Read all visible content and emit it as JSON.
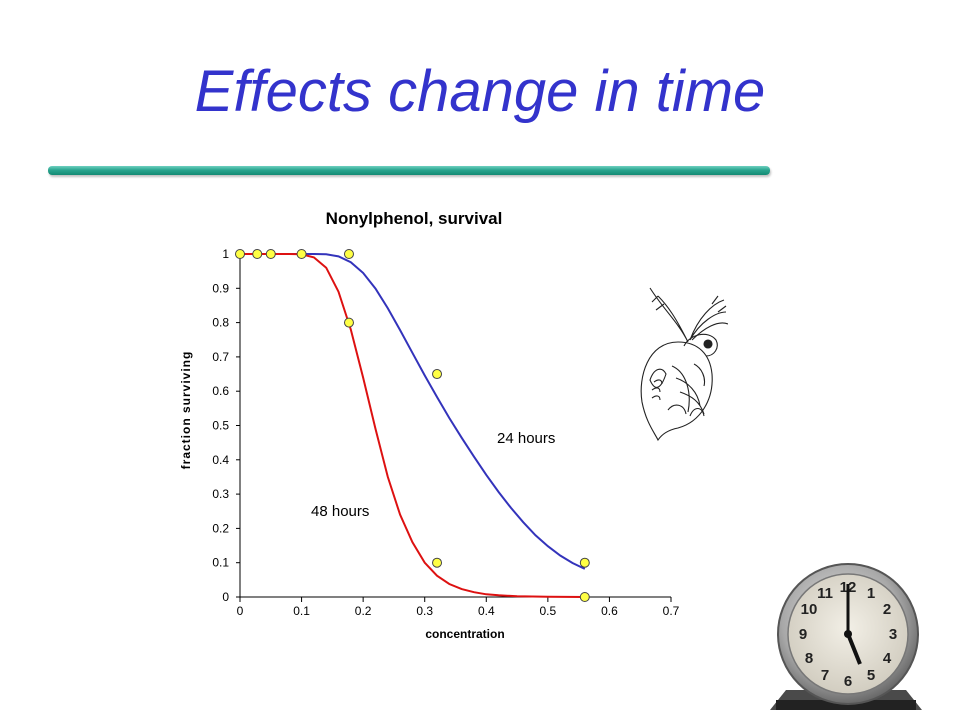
{
  "slide": {
    "title": "Effects change in time",
    "illustrations": [
      "daphnia-icon",
      "alarm-clock-icon"
    ]
  },
  "colors": {
    "title": "#3333cc",
    "rule": "#2aa58f",
    "series_24h": "#3333bb",
    "series_48h": "#dd1111",
    "marker_fill": "#ffff44"
  },
  "chart_data": {
    "type": "line",
    "title": "Nonylphenol, survival",
    "xlabel": "concentration",
    "ylabel": "fraction surviving",
    "xlim": [
      0,
      0.7
    ],
    "ylim": [
      0,
      1
    ],
    "xticks": [
      "0",
      "0.1",
      "0.2",
      "0.3",
      "0.4",
      "0.5",
      "0.6",
      "0.7"
    ],
    "yticks": [
      "0",
      "0.1",
      "0.2",
      "0.3",
      "0.4",
      "0.5",
      "0.6",
      "0.7",
      "0.8",
      "0.9",
      "1"
    ],
    "grid": false,
    "legend": "none",
    "series": [
      {
        "name": "24 hours",
        "color": "#3333bb",
        "fit_x": [
          0,
          0.02,
          0.04,
          0.06,
          0.08,
          0.1,
          0.12,
          0.14,
          0.16,
          0.18,
          0.2,
          0.22,
          0.24,
          0.26,
          0.28,
          0.3,
          0.32,
          0.34,
          0.36,
          0.38,
          0.4,
          0.42,
          0.44,
          0.46,
          0.48,
          0.5,
          0.52,
          0.54,
          0.56
        ],
        "fit_y": [
          1,
          1,
          1,
          1,
          1,
          1,
          1,
          0.999,
          0.993,
          0.976,
          0.945,
          0.899,
          0.842,
          0.778,
          0.712,
          0.646,
          0.583,
          0.522,
          0.464,
          0.409,
          0.356,
          0.306,
          0.26,
          0.218,
          0.18,
          0.148,
          0.121,
          0.099,
          0.082
        ],
        "points": [
          [
            0.56,
            0.1
          ],
          [
            0.32,
            0.65
          ],
          [
            0.177,
            1
          ]
        ]
      },
      {
        "name": "48 hours",
        "color": "#dd1111",
        "fit_x": [
          0,
          0.05,
          0.08,
          0.1,
          0.12,
          0.14,
          0.16,
          0.18,
          0.2,
          0.22,
          0.24,
          0.26,
          0.28,
          0.3,
          0.32,
          0.34,
          0.36,
          0.38,
          0.4,
          0.42,
          0.45,
          0.5,
          0.56
        ],
        "fit_y": [
          1,
          1,
          1,
          0.999,
          0.99,
          0.96,
          0.89,
          0.78,
          0.64,
          0.49,
          0.35,
          0.24,
          0.16,
          0.1,
          0.062,
          0.038,
          0.023,
          0.014,
          0.008,
          0.005,
          0.002,
          0.0005,
          0
        ],
        "points": [
          [
            0,
            1
          ],
          [
            0.028,
            1
          ],
          [
            0.05,
            1
          ],
          [
            0.1,
            1
          ],
          [
            0.177,
            0.8
          ],
          [
            0.32,
            0.1
          ],
          [
            0.56,
            0
          ]
        ]
      }
    ]
  }
}
